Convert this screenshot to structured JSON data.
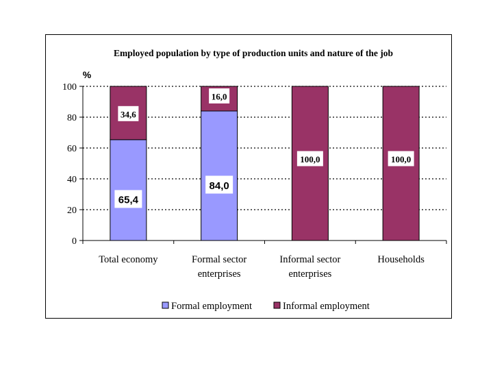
{
  "chart_data": {
    "type": "bar",
    "stacked": true,
    "title": "Employed population by type of  production units and nature of the job",
    "ylabel": "%",
    "xlabel": "",
    "ylim": [
      0,
      100
    ],
    "yticks": [
      "0",
      "20",
      "40",
      "60",
      "80",
      "100"
    ],
    "grid": true,
    "legend_position": "bottom",
    "categories": [
      [
        "Total economy"
      ],
      [
        "Formal sector",
        "enterprises"
      ],
      [
        "Informal sector",
        "enterprises"
      ],
      [
        "Households"
      ]
    ],
    "series": [
      {
        "name": "Formal employment",
        "color": "#9999ff",
        "values": [
          65.4,
          84.0,
          0,
          0
        ],
        "labels": [
          "65,4",
          "84,0",
          "",
          ""
        ]
      },
      {
        "name": "Informal employment",
        "color": "#993366",
        "values": [
          34.6,
          16.0,
          100.0,
          100.0
        ],
        "labels": [
          "34,6",
          "16,0",
          "100,0",
          "100,0"
        ]
      }
    ]
  }
}
